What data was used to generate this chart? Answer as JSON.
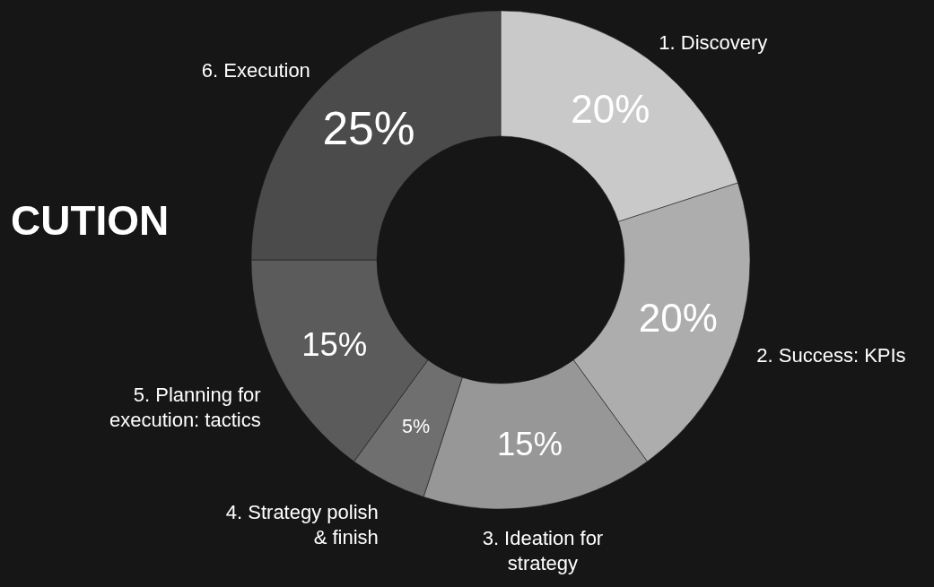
{
  "chart_data": {
    "type": "donut",
    "title": "CUTION",
    "categories": [
      "1. Discovery",
      "2. Success: KPIs",
      "3. Ideation for\nstrategy",
      "4. Strategy polish\n& finish",
      "5. Planning for\nexecution:  tactics",
      "6. Execution"
    ],
    "values": [
      20,
      20,
      15,
      5,
      15,
      25
    ],
    "value_labels": [
      "20%",
      "20%",
      "15%",
      "5%",
      "15%",
      "25%"
    ],
    "colors": [
      "#c9c9c9",
      "#adadad",
      "#979797",
      "#6f6f6f",
      "#5b5b5b",
      "#4b4b4b"
    ]
  }
}
